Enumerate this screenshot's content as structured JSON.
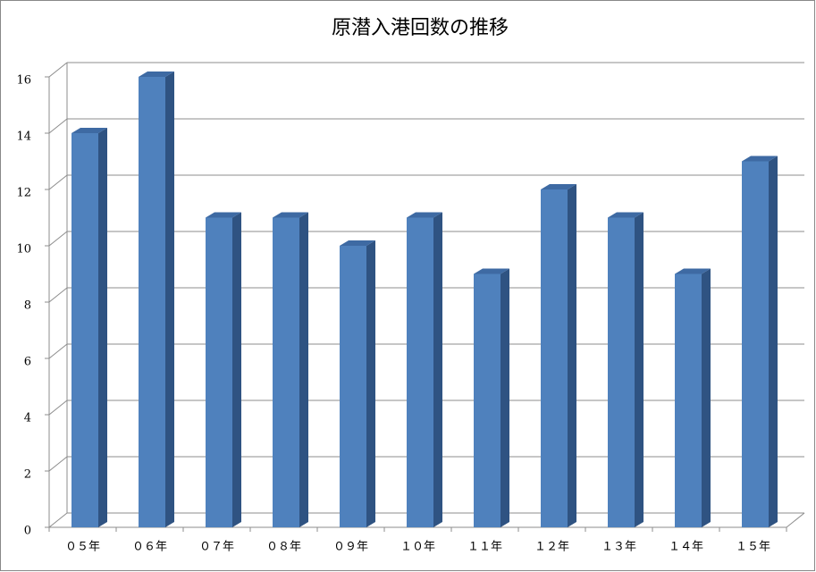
{
  "chart_data": {
    "type": "bar",
    "title": "原潜入港回数の推移",
    "categories": [
      "０５年",
      "０６年",
      "０７年",
      "０８年",
      "０９年",
      "１０年",
      "１１年",
      "１２年",
      "１３年",
      "１４年",
      "１５年"
    ],
    "values": [
      14,
      16,
      11,
      11,
      10,
      11,
      9,
      12,
      11,
      9,
      13
    ],
    "color": "#4f81bd",
    "ylim": [
      0,
      16
    ],
    "yticks": [
      0,
      2,
      4,
      6,
      8,
      10,
      12,
      14,
      16
    ],
    "grid": true
  }
}
